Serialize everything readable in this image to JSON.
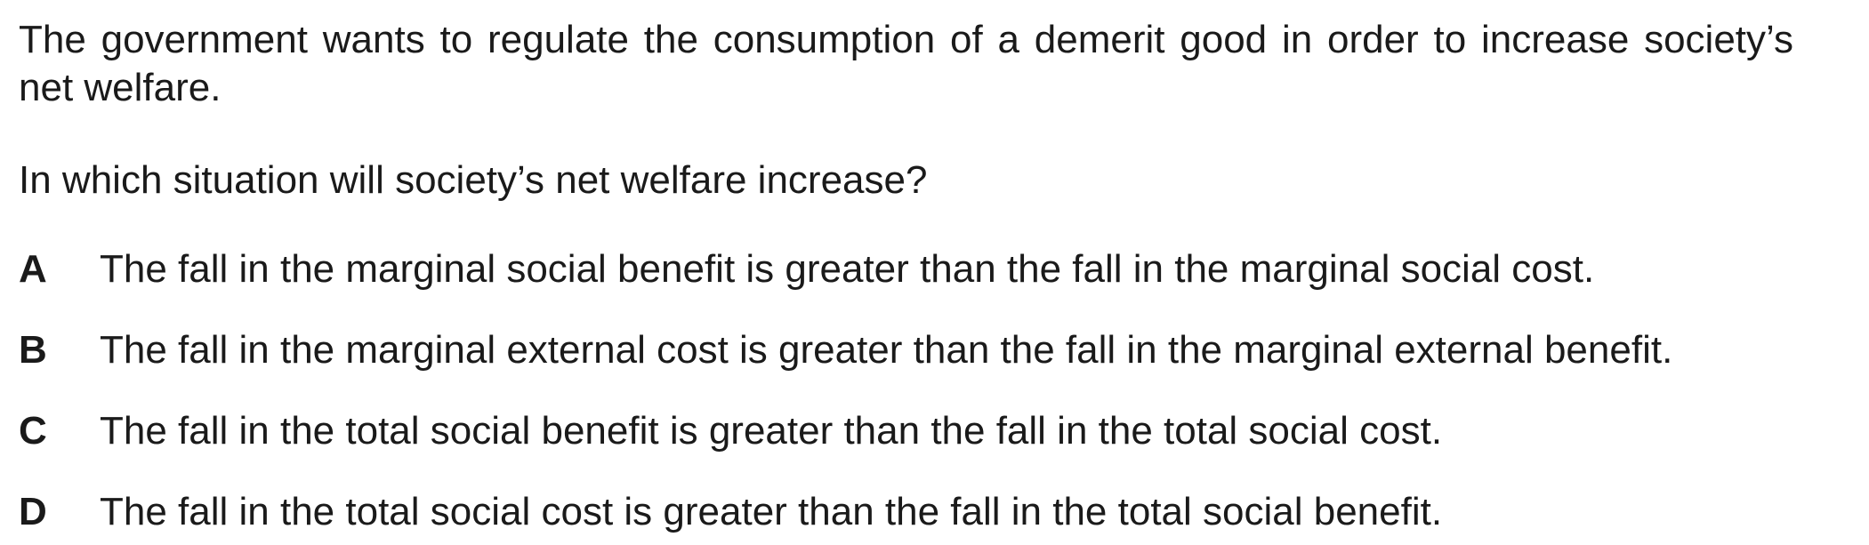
{
  "question": {
    "stem": "The government wants to regulate the consumption of a demerit good in order to increase society’s net welfare.",
    "prompt": "In which situation will society’s net welfare increase?",
    "options": [
      {
        "letter": "A",
        "text": "The fall in the marginal social benefit is greater than the fall in the marginal social cost."
      },
      {
        "letter": "B",
        "text": "The fall in the marginal external cost is greater than the fall in the marginal external benefit."
      },
      {
        "letter": "C",
        "text": "The fall in the total social benefit is greater than the fall in the total social cost."
      },
      {
        "letter": "D",
        "text": "The fall in the total social cost is greater than the fall in the total social benefit."
      }
    ]
  }
}
